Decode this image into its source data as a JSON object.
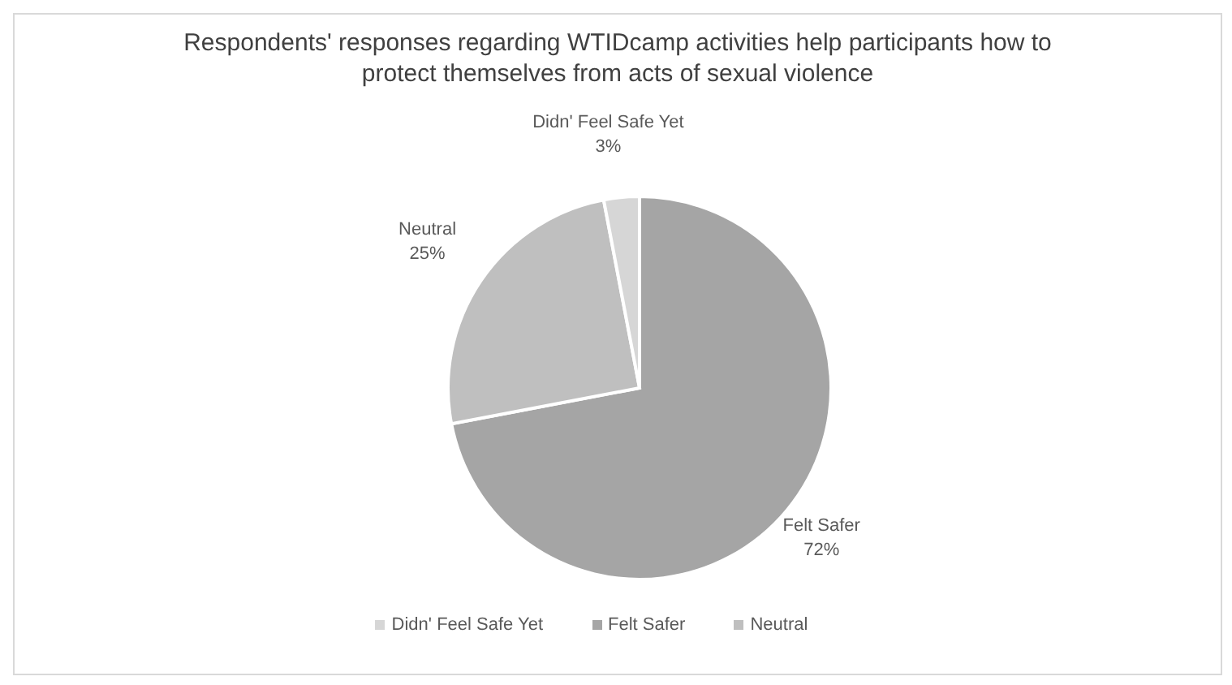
{
  "chart_data": {
    "type": "pie",
    "title": "Respondents' responses regarding WTIDcamp activities help participants how to protect themselves from acts of sexual violence",
    "categories": [
      "Felt Safer",
      "Neutral",
      "Didn' Feel Safe Yet"
    ],
    "values": [
      72,
      25,
      3
    ],
    "colors": [
      "#a5a5a5",
      "#bfbfbf",
      "#d6d6d6"
    ],
    "value_labels": [
      "72%",
      "25%",
      "3%"
    ],
    "legend": "bottom"
  }
}
